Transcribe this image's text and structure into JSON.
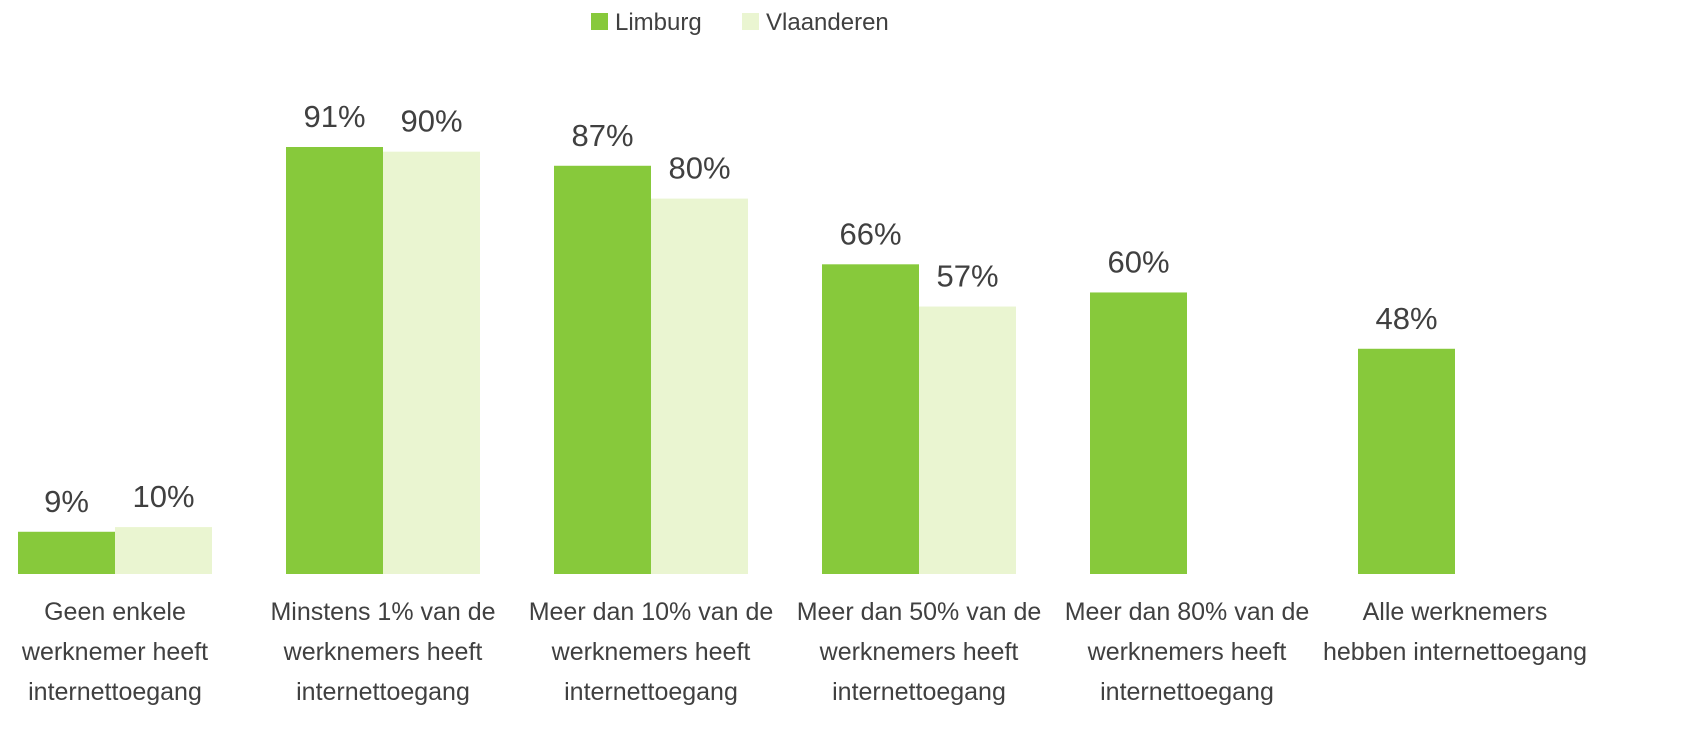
{
  "chart_data": {
    "type": "bar",
    "categories": [
      "Geen enkele werknemer heeft internettoegang",
      "Minstens 1% van de werknemers heeft internettoegang",
      "Meer dan 10% van de werknemers heeft internettoegang",
      "Meer dan 50% van de werknemers heeft internettoegang",
      "Meer dan 80% van de werknemers heeft internettoegang",
      "Alle werknemers hebben internettoegang"
    ],
    "series": [
      {
        "name": "Limburg",
        "color": "#87c93b",
        "values": [
          9,
          91,
          87,
          66,
          60,
          48
        ],
        "value_labels": [
          "9%",
          "91%",
          "87%",
          "66%",
          "60%",
          "48%"
        ]
      },
      {
        "name": "Vlaanderen",
        "color": "#eaf5d1",
        "values": [
          10,
          90,
          80,
          57,
          null,
          null
        ],
        "value_labels": [
          "10%",
          "90%",
          "80%",
          "57%",
          null,
          null
        ]
      }
    ],
    "legend": "top"
  }
}
